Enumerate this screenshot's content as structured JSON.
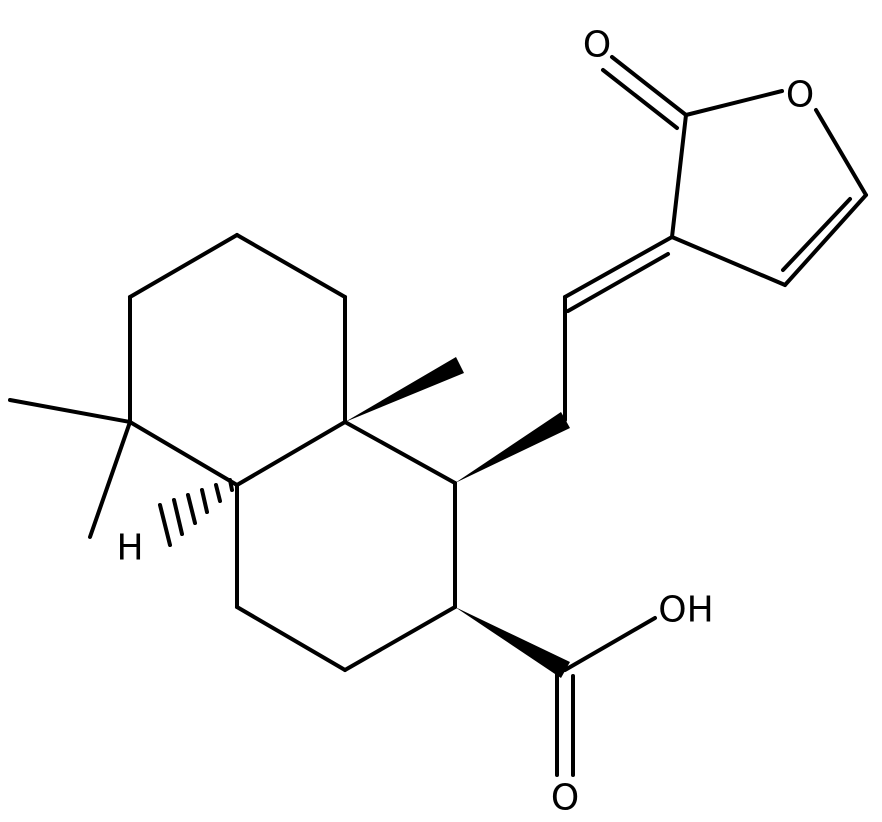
{
  "atoms": [
    {
      "label": "O"
    },
    {
      "label": "O"
    },
    {
      "label": "H"
    },
    {
      "label": "OH"
    },
    {
      "label": "O"
    }
  ]
}
